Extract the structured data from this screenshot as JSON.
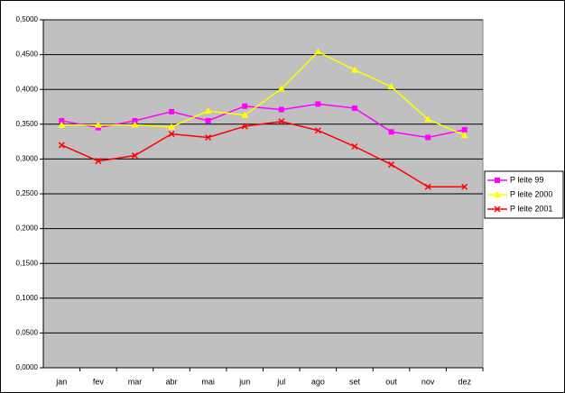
{
  "chart_data": {
    "type": "line",
    "categories": [
      "jan",
      "fev",
      "mar",
      "abr",
      "mai",
      "jun",
      "jul",
      "ago",
      "set",
      "out",
      "nov",
      "dez"
    ],
    "series": [
      {
        "name": "P leite 99",
        "color": "#ff00ff",
        "marker": "square",
        "values": [
          0.355,
          0.345,
          0.355,
          0.368,
          0.355,
          0.376,
          0.371,
          0.379,
          0.373,
          0.339,
          0.331,
          0.342
        ]
      },
      {
        "name": "P leite 2000",
        "color": "#ffff00",
        "marker": "triangle",
        "values": [
          0.349,
          0.349,
          0.349,
          0.346,
          0.369,
          0.363,
          0.401,
          0.454,
          0.428,
          0.404,
          0.357,
          0.334
        ]
      },
      {
        "name": "P leite 2001",
        "color": "#ff0000",
        "marker": "x",
        "values": [
          0.32,
          0.297,
          0.305,
          0.336,
          0.331,
          0.347,
          0.354,
          0.341,
          0.318,
          0.292,
          0.26,
          0.26
        ]
      }
    ],
    "ylim": [
      0,
      0.5
    ],
    "yticks": [
      {
        "value": 0,
        "label": "0,0000"
      },
      {
        "value": 0.05,
        "label": "0,0500"
      },
      {
        "value": 0.1,
        "label": "0,1000"
      },
      {
        "value": 0.15,
        "label": "0,1500"
      },
      {
        "value": 0.2,
        "label": "0,2000"
      },
      {
        "value": 0.25,
        "label": "0,2500"
      },
      {
        "value": 0.3,
        "label": "0,3000"
      },
      {
        "value": 0.35,
        "label": "0,3500"
      },
      {
        "value": 0.4,
        "label": "0,4000"
      },
      {
        "value": 0.45,
        "label": "0,4500"
      },
      {
        "value": 0.5,
        "label": "0,5000"
      }
    ],
    "grid": true,
    "legend": "right",
    "background": "#c0c0c0"
  }
}
